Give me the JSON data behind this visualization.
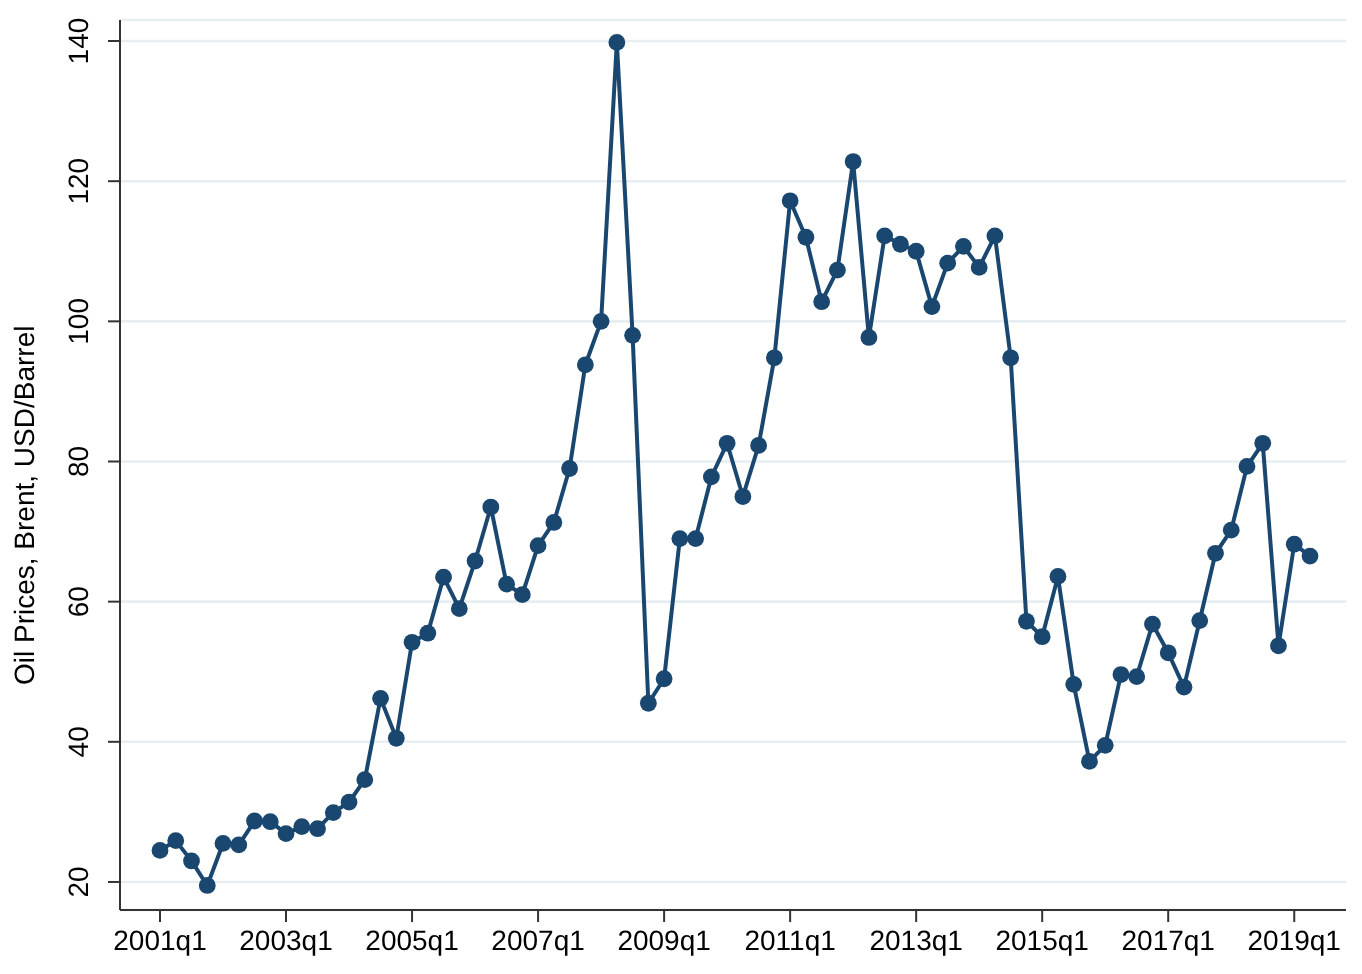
{
  "chart_data": {
    "type": "line",
    "ylabel": "Oil Prices, Brent, USD/Barrel",
    "categories": [
      "2001q1",
      null,
      null,
      null,
      null,
      null,
      null,
      null,
      "2003q1",
      null,
      null,
      null,
      null,
      null,
      null,
      null,
      "2005q1",
      null,
      null,
      null,
      null,
      null,
      null,
      null,
      "2007q1",
      null,
      null,
      null,
      null,
      null,
      null,
      null,
      "2009q1",
      null,
      null,
      null,
      null,
      null,
      null,
      null,
      "2011q1",
      null,
      null,
      null,
      null,
      null,
      null,
      null,
      "2013q1",
      null,
      null,
      null,
      null,
      null,
      null,
      null,
      "2015q1",
      null,
      null,
      null,
      null,
      null,
      null,
      null,
      "2017q1",
      null,
      null,
      null,
      null,
      null,
      null,
      null,
      "2019q1",
      null
    ],
    "series": [
      {
        "color": "#1a476f",
        "values": [
          24.5,
          25.9,
          23.0,
          19.5,
          25.5,
          25.3,
          28.7,
          28.6,
          26.9,
          27.9,
          27.6,
          29.9,
          31.4,
          34.6,
          46.2,
          40.5,
          54.2,
          55.5,
          63.5,
          59.0,
          65.8,
          73.5,
          62.5,
          61.0,
          68.0,
          71.3,
          79.0,
          93.8,
          100.0,
          139.8,
          98.0,
          45.5,
          49.0,
          69.0,
          69.0,
          77.8,
          82.6,
          75.0,
          82.3,
          94.8,
          117.2,
          112.0,
          102.8,
          107.3,
          122.8,
          97.7,
          112.2,
          111.0,
          110.0,
          102.1,
          108.3,
          110.7,
          107.7,
          112.2,
          94.8,
          57.2,
          55.0,
          63.6,
          48.2,
          37.2,
          39.5,
          49.6,
          49.3,
          56.8,
          52.7,
          47.8,
          57.3,
          66.9,
          70.2,
          79.3,
          82.6,
          53.7,
          68.2,
          66.5
        ]
      }
    ],
    "ylim": [
      16,
      143
    ],
    "yticks": [
      20,
      40,
      60,
      80,
      100,
      120,
      140
    ],
    "grid": "y",
    "marker": "circle",
    "line_style": "solid",
    "legend": false
  }
}
